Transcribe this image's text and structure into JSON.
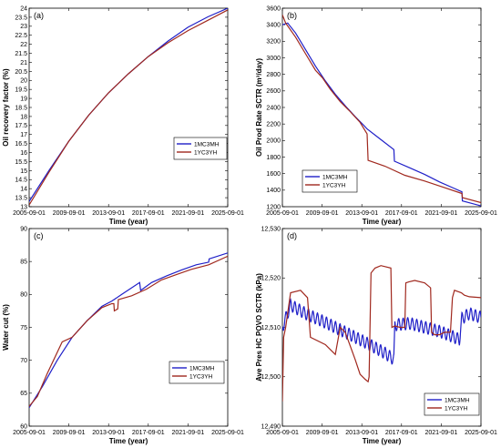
{
  "chart_data": [
    {
      "type": "line",
      "panel_label": "(a)",
      "xlabel": "Time (year)",
      "ylabel": "Oil recovery factor (%)",
      "x_ticks": [
        "2005-09-01",
        "2009-09-01",
        "2013-09-01",
        "2017-09-01",
        "2021-09-01",
        "2025-09-01"
      ],
      "xlim": [
        2005.67,
        2025.67
      ],
      "ylim": [
        12.5,
        24
      ],
      "y_ticks": [
        "13",
        "13.5",
        "14",
        "14.5",
        "15",
        "15.5",
        "16",
        "16.5",
        "17",
        "17.5",
        "18",
        "18.5",
        "19",
        "19.5",
        "20",
        "20.5",
        "21",
        "21.5",
        "22",
        "22.5",
        "23",
        "23.5",
        "24"
      ],
      "legend_position": "center-right",
      "series": [
        {
          "name": "1MC3MH",
          "color": "#1f1fc8",
          "x": [
            2005.67,
            2007.67,
            2009.67,
            2011.67,
            2013.67,
            2015.67,
            2017.67,
            2019.67,
            2021.67,
            2023.67,
            2025.67
          ],
          "y": [
            12.8,
            14.6,
            16.3,
            17.8,
            19.1,
            20.2,
            21.2,
            22.1,
            22.9,
            23.5,
            24.0
          ]
        },
        {
          "name": "1YC3YH",
          "color": "#a0281e",
          "x": [
            2005.67,
            2007.67,
            2009.67,
            2011.67,
            2013.67,
            2015.67,
            2017.67,
            2019.67,
            2021.67,
            2023.67,
            2025.67
          ],
          "y": [
            12.6,
            14.5,
            16.3,
            17.8,
            19.1,
            20.2,
            21.2,
            22.0,
            22.7,
            23.3,
            23.9
          ]
        }
      ]
    },
    {
      "type": "line",
      "panel_label": "(b)",
      "xlabel": "Time (year)",
      "ylabel": "Oil Prod Rate SCTR (m³/day)",
      "x_ticks": [
        "2005-09-01",
        "2009-09-01",
        "2013-09-01",
        "2017-09-01",
        "2021-09-01",
        "2025-09-01"
      ],
      "xlim": [
        2005.67,
        2025.67
      ],
      "ylim": [
        1200,
        3600
      ],
      "y_ticks": [
        "1200",
        "1400",
        "1600",
        "1800",
        "2000",
        "2200",
        "2400",
        "2600",
        "2800",
        "3000",
        "3200",
        "3400",
        "3600"
      ],
      "legend_position": "bottom-left",
      "series": [
        {
          "name": "1MC3MH",
          "color": "#1f1fc8",
          "x": [
            2005.67,
            2006.2,
            2007.0,
            2008.0,
            2009.0,
            2010.0,
            2011.0,
            2012.0,
            2013.0,
            2013.9,
            2014.2,
            2015.5,
            2016.9,
            2016.95,
            2018.5,
            2020.0,
            2021.5,
            2023.0,
            2023.75,
            2023.8,
            2025.67
          ],
          "y": [
            3400,
            3420,
            3300,
            3100,
            2900,
            2720,
            2560,
            2420,
            2290,
            2180,
            2140,
            2020,
            1890,
            1750,
            1670,
            1590,
            1500,
            1420,
            1380,
            1270,
            1210
          ]
        },
        {
          "name": "1YC3YH",
          "color": "#a0281e",
          "x": [
            2005.67,
            2006.0,
            2007.0,
            2008.0,
            2009.0,
            2009.7,
            2010.5,
            2011.5,
            2012.5,
            2013.5,
            2014.2,
            2014.3,
            2016.0,
            2018.0,
            2020.0,
            2022.0,
            2023.75,
            2023.8,
            2025.67
          ],
          "y": [
            3520,
            3420,
            3250,
            3050,
            2850,
            2760,
            2620,
            2470,
            2350,
            2220,
            2080,
            1760,
            1690,
            1580,
            1510,
            1430,
            1360,
            1310,
            1250
          ]
        }
      ]
    },
    {
      "type": "line",
      "panel_label": "(c)",
      "xlabel": "Time (year)",
      "ylabel": "Water cut (%)",
      "x_ticks": [
        "2005-09-01",
        "2009-09-01",
        "2013-09-01",
        "2017-09-01",
        "2021-09-01",
        "2025-09-01"
      ],
      "xlim": [
        2005.67,
        2025.67
      ],
      "ylim": [
        60,
        90
      ],
      "y_ticks": [
        "60",
        "65",
        "70",
        "75",
        "80",
        "85",
        "90"
      ],
      "legend_position": "bottom-right",
      "series": [
        {
          "name": "1MC3MH",
          "color": "#1f1fc8",
          "x": [
            2005.67,
            2007.0,
            2008.5,
            2010.0,
            2011.5,
            2013.0,
            2014.0,
            2015.0,
            2016.8,
            2016.9,
            2018.0,
            2019.5,
            2021.0,
            2022.5,
            2023.75,
            2023.8,
            2025.67
          ],
          "y": [
            62.8,
            66.0,
            70.0,
            73.5,
            76.0,
            78.2,
            79.0,
            80.0,
            81.8,
            80.6,
            81.8,
            82.8,
            83.7,
            84.5,
            84.9,
            85.4,
            86.3
          ]
        },
        {
          "name": "1YC3YH",
          "color": "#a0281e",
          "x": [
            2005.67,
            2006.5,
            2007.5,
            2009.0,
            2010.0,
            2011.5,
            2013.0,
            2014.0,
            2014.2,
            2014.25,
            2014.6,
            2014.65,
            2016.0,
            2017.5,
            2019.0,
            2020.5,
            2022.0,
            2023.75,
            2025.67
          ],
          "y": [
            63.0,
            64.5,
            68.0,
            72.8,
            73.5,
            76.0,
            78.0,
            78.6,
            78.6,
            77.5,
            77.8,
            79.2,
            79.8,
            80.8,
            82.2,
            83.0,
            83.8,
            84.5,
            85.8
          ]
        }
      ]
    },
    {
      "type": "line",
      "panel_label": "(d)",
      "xlabel": "Time (year)",
      "ylabel": "Ave Pres HC POVO SCTR (kPa)",
      "x_ticks": [
        "2005-09-01",
        "2009-09-01",
        "2013-09-01",
        "2017-09-01",
        "2021-09-01",
        "2025-09-01"
      ],
      "xlim": [
        2005.67,
        2025.67
      ],
      "ylim": [
        12490,
        12530
      ],
      "y_ticks": [
        "12,490",
        "12,500",
        "12,510",
        "12,520",
        "12,530"
      ],
      "legend_position": "bottom-right",
      "series": [
        {
          "name": "1MC3MH",
          "color": "#1f1fc8",
          "oscillation_amplitude_kPa": 1.2,
          "x": [
            2005.67,
            2006.5,
            2008.0,
            2010.0,
            2012.0,
            2014.0,
            2016.0,
            2016.9,
            2017.0,
            2018.5,
            2020.0,
            2021.5,
            2023.0,
            2023.5,
            2023.75,
            2024.5,
            2025.67
          ],
          "y": [
            12510.0,
            12514.5,
            12512.8,
            12511.0,
            12509.0,
            12507.0,
            12504.8,
            12503.5,
            12510.5,
            12510.8,
            12510.0,
            12509.2,
            12508.0,
            12507.5,
            12511.8,
            12512.8,
            12512.0
          ]
        },
        {
          "name": "1YC3YH",
          "color": "#a0281e",
          "x": [
            2005.67,
            2005.8,
            2006.0,
            2006.5,
            2007.5,
            2008.2,
            2008.5,
            2010.0,
            2011.0,
            2011.5,
            2012.0,
            2013.0,
            2013.5,
            2014.0,
            2014.3,
            2014.4,
            2014.6,
            2015.0,
            2015.6,
            2016.6,
            2016.7,
            2017.0,
            2017.5,
            2018.0,
            2018.1,
            2018.4,
            2019.0,
            2020.0,
            2020.6,
            2020.7,
            2021.0,
            2021.5,
            2022.0,
            2022.6,
            2022.8,
            2023.0,
            2023.7,
            2024.0,
            2024.5,
            2025.67
          ],
          "y": [
            12495.0,
            12508.0,
            12510.0,
            12517.0,
            12517.5,
            12516.0,
            12508.0,
            12506.5,
            12504.5,
            12510.0,
            12509.0,
            12503.5,
            12500.5,
            12499.5,
            12499.0,
            12500.0,
            12521.0,
            12522.0,
            12522.5,
            12522.0,
            12510.0,
            12510.3,
            12510.0,
            12510.0,
            12519.0,
            12519.2,
            12519.5,
            12519.0,
            12518.0,
            12509.0,
            12508.5,
            12508.5,
            12509.0,
            12509.0,
            12516.0,
            12517.5,
            12517.0,
            12516.5,
            12516.2,
            12516.0
          ]
        }
      ]
    }
  ]
}
